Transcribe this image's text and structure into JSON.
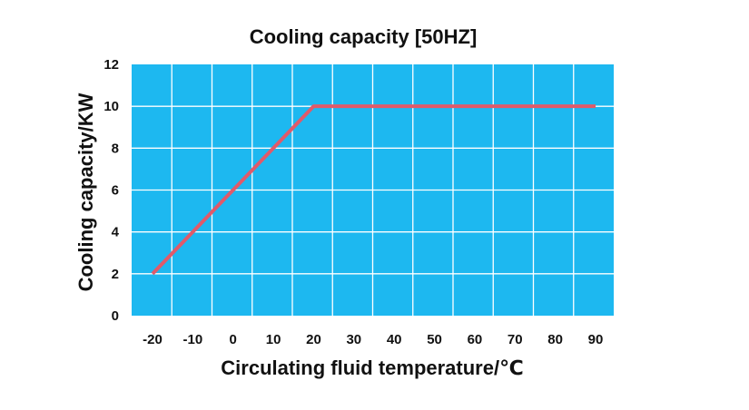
{
  "chart_data": {
    "type": "line",
    "title": "Cooling capacity [50HZ]",
    "xlabel": "Circulating fluid temperature/℃",
    "ylabel": "Cooling capacity/KW",
    "x_ticks": [
      "-20",
      "-10",
      "0",
      "10",
      "20",
      "30",
      "40",
      "50",
      "60",
      "70",
      "80",
      "90"
    ],
    "y_ticks": [
      "0",
      "2",
      "4",
      "6",
      "8",
      "10",
      "12"
    ],
    "ylim": [
      0,
      12
    ],
    "grid": true,
    "legend": "none",
    "series": [
      {
        "x": [
          -20,
          20,
          90
        ],
        "y": [
          2,
          10,
          10
        ]
      }
    ],
    "colors": {
      "plot_background": "#1db8f0",
      "grid": "#ffffff",
      "line": "#e05a6a"
    }
  }
}
